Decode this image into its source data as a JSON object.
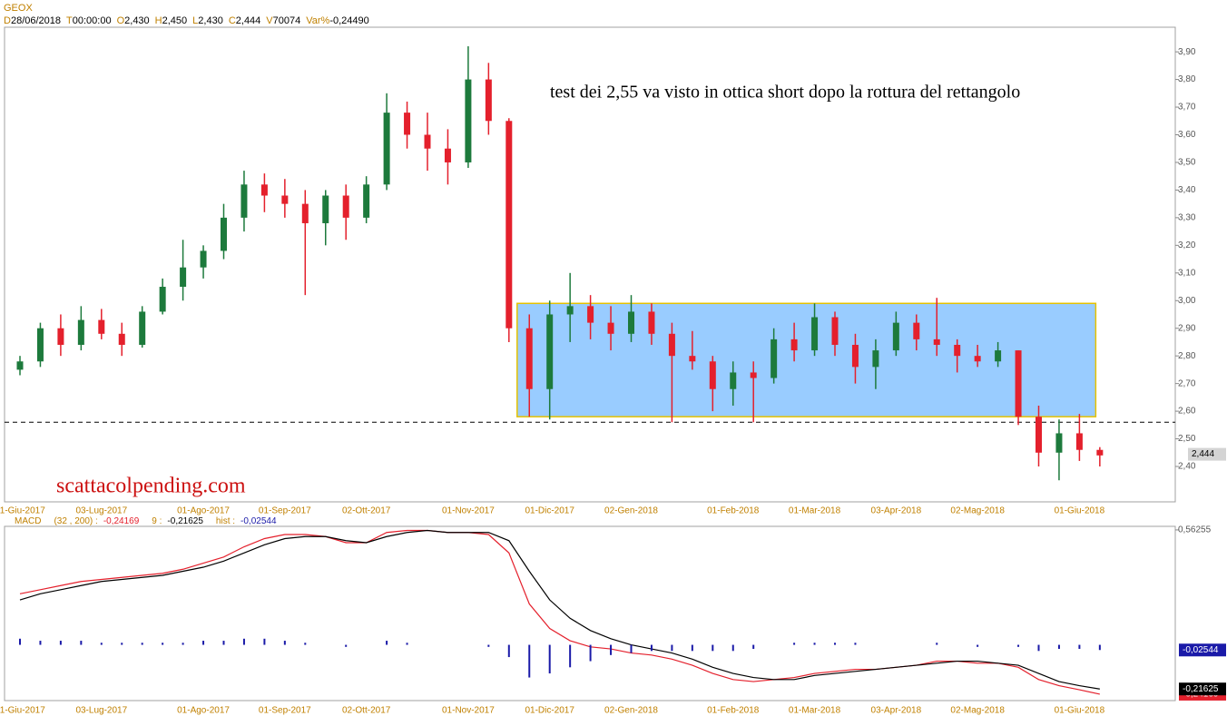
{
  "header": {
    "symbol": "GEOX",
    "fields": [
      {
        "key": "D",
        "value": "28/06/2018"
      },
      {
        "key": "T",
        "value": "00:00:00"
      },
      {
        "key": "O",
        "value": "2,430"
      },
      {
        "key": "H",
        "value": "2,450"
      },
      {
        "key": "L",
        "value": "2,430"
      },
      {
        "key": "C",
        "value": "2,444"
      },
      {
        "key": "V",
        "value": "70074"
      },
      {
        "key": "Var%",
        "value": "-0,24490"
      }
    ]
  },
  "chart_data": [
    {
      "type": "candlestick",
      "annotation": "test dei 2,55 va visto in ottica short dopo la rottura del rettangolo",
      "watermark": "scattacolpending.com",
      "categories": [
        "01-Giu-2017",
        null,
        null,
        null,
        "03-Lug-2017",
        null,
        null,
        null,
        null,
        "01-Ago-2017",
        null,
        null,
        null,
        "01-Sep-2017",
        null,
        null,
        null,
        "02-Ott-2017",
        null,
        null,
        null,
        null,
        "01-Nov-2017",
        null,
        null,
        null,
        "01-Dic-2017",
        null,
        null,
        null,
        "02-Gen-2018",
        null,
        null,
        null,
        null,
        "01-Feb-2018",
        null,
        null,
        null,
        "01-Mar-2018",
        null,
        null,
        null,
        "03-Apr-2018",
        null,
        null,
        null,
        "02-Mag-2018",
        null,
        null,
        null,
        null,
        "01-Giu-2018",
        null
      ],
      "open": [
        2.75,
        2.78,
        2.9,
        2.84,
        2.93,
        2.88,
        2.84,
        2.96,
        3.05,
        3.12,
        3.18,
        3.3,
        3.42,
        3.38,
        3.35,
        3.28,
        3.38,
        3.3,
        3.42,
        3.68,
        3.6,
        3.55,
        3.5,
        3.8,
        3.65,
        2.9,
        2.68,
        2.95,
        2.98,
        2.92,
        2.88,
        2.96,
        2.88,
        2.8,
        2.78,
        2.68,
        2.74,
        2.72,
        2.86,
        2.82,
        2.94,
        2.84,
        2.76,
        2.82,
        2.92,
        2.86,
        2.84,
        2.8,
        2.78,
        2.82,
        2.58,
        2.45,
        2.52,
        2.46
      ],
      "high": [
        2.8,
        2.92,
        2.95,
        2.98,
        2.97,
        2.92,
        2.98,
        3.08,
        3.22,
        3.2,
        3.35,
        3.47,
        3.46,
        3.44,
        3.4,
        3.4,
        3.42,
        3.45,
        3.75,
        3.72,
        3.68,
        3.62,
        3.92,
        3.86,
        3.66,
        2.95,
        3.0,
        3.1,
        3.02,
        2.98,
        3.02,
        2.99,
        2.92,
        2.89,
        2.8,
        2.78,
        2.78,
        2.9,
        2.92,
        2.99,
        2.96,
        2.88,
        2.86,
        2.96,
        2.95,
        3.01,
        2.86,
        2.84,
        2.85,
        2.82,
        2.62,
        2.57,
        2.59,
        2.47
      ],
      "low": [
        2.73,
        2.76,
        2.8,
        2.82,
        2.86,
        2.8,
        2.83,
        2.95,
        3.0,
        3.08,
        3.15,
        3.25,
        3.32,
        3.3,
        3.02,
        3.2,
        3.22,
        3.28,
        3.4,
        3.55,
        3.47,
        3.42,
        3.48,
        3.6,
        2.85,
        2.58,
        2.57,
        2.85,
        2.86,
        2.82,
        2.85,
        2.84,
        2.56,
        2.75,
        2.6,
        2.62,
        2.56,
        2.7,
        2.78,
        2.8,
        2.8,
        2.7,
        2.68,
        2.8,
        2.82,
        2.8,
        2.74,
        2.76,
        2.76,
        2.55,
        2.4,
        2.35,
        2.42,
        2.4
      ],
      "close": [
        2.78,
        2.9,
        2.84,
        2.93,
        2.88,
        2.84,
        2.96,
        3.05,
        3.12,
        3.18,
        3.3,
        3.42,
        3.38,
        3.35,
        3.28,
        3.38,
        3.3,
        3.42,
        3.68,
        3.6,
        3.55,
        3.5,
        3.8,
        3.65,
        2.9,
        2.68,
        2.95,
        2.98,
        2.92,
        2.88,
        2.96,
        2.88,
        2.8,
        2.78,
        2.68,
        2.74,
        2.72,
        2.86,
        2.82,
        2.94,
        2.84,
        2.76,
        2.82,
        2.92,
        2.86,
        2.84,
        2.8,
        2.78,
        2.82,
        2.58,
        2.45,
        2.52,
        2.46,
        2.44
      ],
      "up_color": "#1d7a3c",
      "down_color": "#e4202c",
      "zone": {
        "x": [
          24.4,
          52.8
        ],
        "y": [
          2.58,
          2.99
        ],
        "color": "#99ccff",
        "border": "#e6c200"
      },
      "hline": 2.56,
      "last_price": {
        "value": 2.444,
        "label": "2,444"
      },
      "ylim": [
        2.272,
        3.989
      ],
      "yticks": [
        {
          "value": 2.4,
          "label": "2,40"
        },
        {
          "value": 2.5,
          "label": "2,50"
        },
        {
          "value": 2.6,
          "label": "2,60"
        },
        {
          "value": 2.7,
          "label": "2,70"
        },
        {
          "value": 2.8,
          "label": "2,80"
        },
        {
          "value": 2.9,
          "label": "2,90"
        },
        {
          "value": 3.0,
          "label": "3,00"
        },
        {
          "value": 3.1,
          "label": "3,10"
        },
        {
          "value": 3.2,
          "label": "3,20"
        },
        {
          "value": 3.3,
          "label": "3,30"
        },
        {
          "value": 3.4,
          "label": "3,40"
        },
        {
          "value": 3.5,
          "label": "3,50"
        },
        {
          "value": 3.6,
          "label": "3,60"
        },
        {
          "value": 3.7,
          "label": "3,70"
        },
        {
          "value": 3.8,
          "label": "3,80"
        },
        {
          "value": 3.9,
          "label": "3,90"
        }
      ]
    },
    {
      "type": "macd",
      "title": "MACD",
      "categories": [
        "01-Giu-2017",
        null,
        null,
        null,
        "03-Lug-2017",
        null,
        null,
        null,
        null,
        "01-Ago-2017",
        null,
        null,
        null,
        "01-Sep-2017",
        null,
        null,
        null,
        "02-Ott-2017",
        null,
        null,
        null,
        null,
        "01-Nov-2017",
        null,
        null,
        null,
        "01-Dic-2017",
        null,
        null,
        null,
        "02-Gen-2018",
        null,
        null,
        null,
        null,
        "01-Feb-2018",
        null,
        null,
        null,
        "01-Mar-2018",
        null,
        null,
        null,
        "03-Apr-2018",
        null,
        null,
        null,
        "02-Mag-2018",
        null,
        null,
        null,
        null,
        "01-Giu-2018",
        null
      ],
      "series": [
        {
          "name": "(32 , 200) :",
          "kind": "line",
          "color": "#e4202c",
          "last_label": "-0,24169",
          "values": [
            0.25,
            0.27,
            0.29,
            0.31,
            0.32,
            0.33,
            0.34,
            0.35,
            0.37,
            0.4,
            0.43,
            0.48,
            0.52,
            0.54,
            0.54,
            0.53,
            0.5,
            0.5,
            0.55,
            0.56,
            0.56,
            0.55,
            0.55,
            0.54,
            0.45,
            0.2,
            0.08,
            0.02,
            -0.01,
            -0.02,
            -0.04,
            -0.05,
            -0.07,
            -0.1,
            -0.14,
            -0.17,
            -0.18,
            -0.17,
            -0.16,
            -0.14,
            -0.13,
            -0.12,
            -0.12,
            -0.11,
            -0.1,
            -0.08,
            -0.08,
            -0.09,
            -0.09,
            -0.11,
            -0.17,
            -0.2,
            -0.22,
            -0.24169
          ]
        },
        {
          "name": "9 :",
          "kind": "line",
          "color": "#000000",
          "last_label": "-0,21625",
          "values": [
            0.22,
            0.25,
            0.27,
            0.29,
            0.31,
            0.32,
            0.33,
            0.34,
            0.36,
            0.38,
            0.41,
            0.45,
            0.49,
            0.52,
            0.53,
            0.53,
            0.51,
            0.5,
            0.53,
            0.55,
            0.56,
            0.55,
            0.55,
            0.55,
            0.51,
            0.36,
            0.22,
            0.13,
            0.07,
            0.03,
            0.0,
            -0.02,
            -0.04,
            -0.07,
            -0.11,
            -0.14,
            -0.16,
            -0.17,
            -0.17,
            -0.15,
            -0.14,
            -0.13,
            -0.12,
            -0.11,
            -0.1,
            -0.09,
            -0.08,
            -0.08,
            -0.09,
            -0.1,
            -0.14,
            -0.18,
            -0.2,
            -0.21625
          ]
        },
        {
          "name": "hist :",
          "kind": "hist",
          "color": "#1a1aa8",
          "last_label": "-0,02544",
          "values": [
            0.03,
            0.02,
            0.02,
            0.02,
            0.01,
            0.01,
            0.01,
            0.01,
            0.01,
            0.02,
            0.02,
            0.03,
            0.03,
            0.02,
            0.01,
            0,
            -0.01,
            0,
            0.02,
            0.01,
            0,
            0,
            0,
            -0.01,
            -0.06,
            -0.16,
            -0.14,
            -0.11,
            -0.08,
            -0.05,
            -0.04,
            -0.03,
            -0.03,
            -0.03,
            -0.03,
            -0.03,
            -0.02,
            0,
            0.01,
            0.01,
            0.01,
            0.01,
            0,
            0,
            0,
            0.01,
            0,
            -0.01,
            0,
            -0.01,
            -0.03,
            -0.02,
            -0.02,
            -0.02544
          ]
        }
      ],
      "ylim": [
        -0.273,
        0.58
      ],
      "yticks": [
        {
          "value": 0.56255,
          "label": "0,56255"
        }
      ]
    }
  ]
}
